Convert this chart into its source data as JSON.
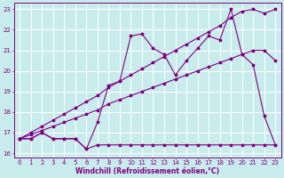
{
  "xlabel": "Windchill (Refroidissement éolien,°C)",
  "ylabel": "",
  "background_color": "#c8ecec",
  "grid_color": "#ffffff",
  "line_color": "#800080",
  "xlim": [
    -0.5,
    23.5
  ],
  "ylim": [
    15.8,
    23.3
  ],
  "xticks": [
    0,
    1,
    2,
    3,
    4,
    5,
    6,
    7,
    8,
    9,
    10,
    11,
    12,
    13,
    14,
    15,
    16,
    17,
    18,
    19,
    20,
    21,
    22,
    23
  ],
  "yticks": [
    16,
    17,
    18,
    19,
    20,
    21,
    22,
    23
  ],
  "line1_x": [
    0,
    1,
    2,
    3,
    4,
    5,
    6,
    7,
    8,
    9,
    10,
    11,
    12,
    13,
    14,
    15,
    16,
    17,
    18,
    19,
    20,
    21,
    22,
    23
  ],
  "line1_y": [
    16.7,
    17.0,
    17.3,
    17.6,
    17.9,
    18.2,
    18.5,
    18.8,
    19.2,
    19.5,
    19.8,
    20.1,
    20.4,
    20.7,
    21.0,
    21.3,
    21.6,
    21.9,
    22.2,
    22.6,
    22.9,
    23.0,
    22.8,
    23.0
  ],
  "line2_x": [
    0,
    1,
    2,
    3,
    4,
    5,
    6,
    7,
    8,
    9,
    10,
    11,
    12,
    13,
    14,
    15,
    16,
    17,
    18,
    19,
    20,
    21,
    22,
    23
  ],
  "line2_y": [
    16.7,
    16.9,
    17.1,
    17.3,
    17.5,
    17.7,
    17.9,
    18.1,
    18.4,
    18.6,
    18.8,
    19.0,
    19.2,
    19.4,
    19.6,
    19.8,
    20.0,
    20.2,
    20.4,
    20.6,
    20.8,
    21.0,
    21.0,
    20.5
  ],
  "line3_x": [
    0,
    1,
    2,
    3,
    4,
    5,
    6,
    7,
    8,
    9,
    10,
    11,
    12,
    13,
    14,
    15,
    16,
    17,
    18,
    19,
    20,
    21,
    22,
    23
  ],
  "line3_y": [
    16.7,
    16.7,
    17.0,
    16.7,
    16.7,
    16.7,
    16.2,
    17.5,
    19.3,
    19.5,
    21.7,
    21.8,
    21.1,
    20.8,
    19.8,
    20.5,
    21.1,
    21.7,
    21.5,
    23.0,
    20.8,
    20.3,
    17.8,
    16.4
  ],
  "line4_x": [
    0,
    1,
    2,
    3,
    4,
    5,
    6,
    7,
    8,
    9,
    10,
    11,
    12,
    13,
    14,
    15,
    16,
    17,
    18,
    19,
    20,
    21,
    22,
    23
  ],
  "line4_y": [
    16.7,
    16.7,
    17.0,
    16.7,
    16.7,
    16.7,
    16.2,
    16.4,
    16.4,
    16.4,
    16.4,
    16.4,
    16.4,
    16.4,
    16.4,
    16.4,
    16.4,
    16.4,
    16.4,
    16.4,
    16.4,
    16.4,
    16.4,
    16.4
  ]
}
